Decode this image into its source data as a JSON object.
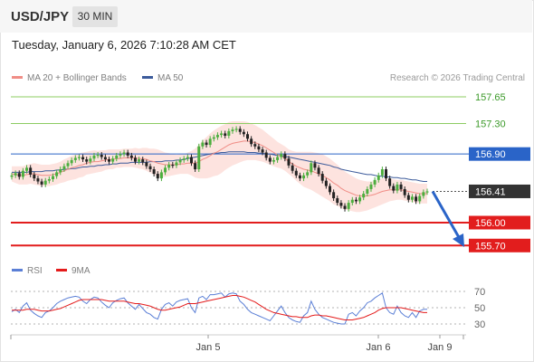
{
  "header": {
    "symbol": "USD/JPY",
    "interval_label": "30 MIN"
  },
  "timestamp": "Tuesday, January 6, 2026 7:10:28 AM CET",
  "legend": [
    {
      "label": "MA 20 + Bollinger Bands",
      "color": "#f08d86"
    },
    {
      "label": "MA 50",
      "color": "#3c5b9b"
    }
  ],
  "copyright": "Research © 2026 Trading Central",
  "rsi_legend": [
    {
      "label": "RSI",
      "color": "#5b7fd6"
    },
    {
      "label": "9MA",
      "color": "#e41b1b"
    }
  ],
  "colors": {
    "resistance": "#8ccc62",
    "pivot": "#2a64c8",
    "support": "#e21d1d",
    "current": "#333333",
    "bullish": "#4cae3e",
    "bearish": "#222222",
    "band_fill": "#fde3df"
  },
  "chart_data": {
    "type": "candlestick",
    "levels": [
      {
        "label": "157.65",
        "value": 157.65,
        "kind": "resistance"
      },
      {
        "label": "157.30",
        "value": 157.3,
        "kind": "resistance"
      },
      {
        "label": "156.90",
        "value": 156.9,
        "kind": "pivot"
      },
      {
        "label": "156.41",
        "value": 156.41,
        "kind": "current"
      },
      {
        "label": "156.00",
        "value": 156.0,
        "kind": "support"
      },
      {
        "label": "155.70",
        "value": 155.7,
        "kind": "support"
      }
    ],
    "rsi_ticks": [
      "70",
      "50",
      "30"
    ],
    "x_ticks": [
      "Jan 5",
      "Jan 6",
      "Jan 9"
    ],
    "closes": [
      156.62,
      156.65,
      156.6,
      156.68,
      156.72,
      156.63,
      156.58,
      156.54,
      156.5,
      156.55,
      156.57,
      156.61,
      156.66,
      156.7,
      156.74,
      156.78,
      156.82,
      156.85,
      156.86,
      156.83,
      156.8,
      156.84,
      156.88,
      156.89,
      156.86,
      156.83,
      156.8,
      156.84,
      156.88,
      156.9,
      156.92,
      156.88,
      156.85,
      156.8,
      156.83,
      156.79,
      156.74,
      156.7,
      156.64,
      156.58,
      156.66,
      156.72,
      156.76,
      156.75,
      156.79,
      156.82,
      156.84,
      156.86,
      156.78,
      156.7,
      157.0,
      157.05,
      157.02,
      157.1,
      157.12,
      157.15,
      157.17,
      157.14,
      157.2,
      157.22,
      157.23,
      157.19,
      157.16,
      157.1,
      157.03,
      157.0,
      156.96,
      156.92,
      156.85,
      156.8,
      156.82,
      156.86,
      156.9,
      156.84,
      156.75,
      156.68,
      156.62,
      156.58,
      156.62,
      156.66,
      156.78,
      156.72,
      156.64,
      156.55,
      156.48,
      156.4,
      156.32,
      156.26,
      156.22,
      156.18,
      156.26,
      156.3,
      156.28,
      156.33,
      156.38,
      156.44,
      156.5,
      156.56,
      156.62,
      156.7,
      156.58,
      156.48,
      156.42,
      156.5,
      156.44,
      156.36,
      156.3,
      156.34,
      156.28,
      156.35,
      156.4,
      156.41
    ],
    "ma20": [
      156.64,
      156.63,
      156.62,
      156.62,
      156.63,
      156.64,
      156.64,
      156.63,
      156.62,
      156.62,
      156.62,
      156.63,
      156.64,
      156.66,
      156.68,
      156.7,
      156.72,
      156.73,
      156.75,
      156.76,
      156.78,
      156.79,
      156.8,
      156.8,
      156.81,
      156.82,
      156.83,
      156.83,
      156.84,
      156.84,
      156.85,
      156.85,
      156.85,
      156.85,
      156.84,
      156.84,
      156.83,
      156.81,
      156.8,
      156.78,
      156.77,
      156.76,
      156.76,
      156.76,
      156.76,
      156.77,
      156.77,
      156.78,
      156.78,
      156.78,
      156.8,
      156.83,
      156.85,
      156.88,
      156.91,
      156.93,
      156.96,
      156.99,
      157.02,
      157.04,
      157.05,
      157.06,
      157.07,
      157.07,
      157.06,
      157.05,
      157.03,
      157.01,
      156.98,
      156.95,
      156.92,
      156.89,
      156.87,
      156.84,
      156.8,
      156.77,
      156.74,
      156.72,
      156.7,
      156.69,
      156.68,
      156.66,
      156.64,
      156.62,
      156.59,
      156.56,
      156.52,
      156.49,
      156.45,
      156.42,
      156.4,
      156.38,
      156.36,
      156.35,
      156.35,
      156.35,
      156.36,
      156.37,
      156.39,
      156.41,
      156.42,
      156.43,
      156.43,
      156.43,
      156.43,
      156.42,
      156.41,
      156.4,
      156.39,
      156.38,
      156.38,
      156.38
    ],
    "ma50": [
      156.66,
      156.66,
      156.66,
      156.66,
      156.66,
      156.67,
      156.67,
      156.67,
      156.67,
      156.68,
      156.68,
      156.68,
      156.69,
      156.69,
      156.7,
      156.7,
      156.71,
      156.71,
      156.72,
      156.73,
      156.73,
      156.74,
      156.74,
      156.75,
      156.75,
      156.76,
      156.76,
      156.77,
      156.77,
      156.78,
      156.78,
      156.78,
      156.79,
      156.79,
      156.79,
      156.79,
      156.79,
      156.8,
      156.8,
      156.8,
      156.8,
      156.81,
      156.81,
      156.81,
      156.82,
      156.82,
      156.83,
      156.84,
      156.85,
      156.86,
      156.87,
      156.88,
      156.89,
      156.9,
      156.91,
      156.91,
      156.92,
      156.92,
      156.93,
      156.93,
      156.93,
      156.93,
      156.93,
      156.92,
      156.92,
      156.92,
      156.91,
      156.91,
      156.9,
      156.9,
      156.89,
      156.88,
      156.88,
      156.87,
      156.86,
      156.85,
      156.84,
      156.83,
      156.82,
      156.81,
      156.8,
      156.79,
      156.78,
      156.77,
      156.76,
      156.75,
      156.73,
      156.72,
      156.7,
      156.69,
      156.68,
      156.67,
      156.66,
      156.65,
      156.64,
      156.63,
      156.63,
      156.62,
      156.61,
      156.61,
      156.6,
      156.6,
      156.59,
      156.59,
      156.58,
      156.58,
      156.57,
      156.56,
      156.56,
      156.55,
      156.54,
      156.54
    ],
    "bb_width": [
      0.1,
      0.11,
      0.12,
      0.12,
      0.13,
      0.13,
      0.14,
      0.14,
      0.14,
      0.14,
      0.14,
      0.14,
      0.14,
      0.14,
      0.15,
      0.15,
      0.16,
      0.16,
      0.16,
      0.16,
      0.15,
      0.15,
      0.15,
      0.14,
      0.14,
      0.13,
      0.13,
      0.13,
      0.12,
      0.12,
      0.12,
      0.12,
      0.12,
      0.13,
      0.13,
      0.14,
      0.15,
      0.16,
      0.17,
      0.18,
      0.17,
      0.16,
      0.15,
      0.14,
      0.13,
      0.13,
      0.13,
      0.14,
      0.16,
      0.19,
      0.22,
      0.25,
      0.27,
      0.29,
      0.3,
      0.31,
      0.31,
      0.3,
      0.3,
      0.29,
      0.28,
      0.27,
      0.26,
      0.25,
      0.24,
      0.23,
      0.22,
      0.21,
      0.2,
      0.19,
      0.18,
      0.17,
      0.16,
      0.16,
      0.16,
      0.17,
      0.19,
      0.21,
      0.23,
      0.24,
      0.25,
      0.26,
      0.27,
      0.28,
      0.28,
      0.28,
      0.28,
      0.27,
      0.26,
      0.25,
      0.24,
      0.23,
      0.22,
      0.21,
      0.2,
      0.19,
      0.18,
      0.17,
      0.17,
      0.17,
      0.16,
      0.15,
      0.14,
      0.13,
      0.13,
      0.13,
      0.13,
      0.13,
      0.13,
      0.13,
      0.13,
      0.13
    ],
    "rsi": [
      45,
      48,
      44,
      52,
      56,
      47,
      43,
      40,
      38,
      44,
      46,
      50,
      55,
      58,
      60,
      62,
      63,
      64,
      63,
      58,
      55,
      60,
      63,
      62,
      57,
      53,
      50,
      56,
      59,
      61,
      62,
      56,
      52,
      48,
      54,
      49,
      44,
      42,
      38,
      36,
      48,
      54,
      56,
      52,
      57,
      59,
      60,
      61,
      50,
      44,
      62,
      64,
      60,
      66,
      66,
      67,
      68,
      63,
      67,
      68,
      67,
      58,
      54,
      48,
      44,
      42,
      40,
      38,
      36,
      34,
      40,
      46,
      52,
      44,
      38,
      35,
      33,
      32,
      40,
      44,
      58,
      48,
      42,
      38,
      36,
      34,
      32,
      31,
      30,
      30,
      42,
      44,
      40,
      46,
      50,
      56,
      58,
      62,
      65,
      68,
      50,
      44,
      42,
      52,
      44,
      40,
      38,
      44,
      38,
      46,
      48,
      48
    ],
    "rsi_ma": [
      47,
      47,
      47,
      47,
      48,
      48,
      48,
      47,
      46,
      46,
      46,
      47,
      48,
      49,
      51,
      53,
      55,
      57,
      59,
      60,
      60,
      60,
      60,
      60,
      60,
      59,
      58,
      58,
      58,
      58,
      58,
      57,
      56,
      55,
      55,
      54,
      53,
      52,
      50,
      48,
      47,
      47,
      48,
      49,
      50,
      51,
      53,
      55,
      55,
      55,
      56,
      57,
      58,
      59,
      60,
      61,
      62,
      63,
      64,
      65,
      65,
      64,
      63,
      61,
      59,
      57,
      54,
      51,
      48,
      46,
      44,
      43,
      42,
      41,
      40,
      39,
      39,
      38,
      38,
      38,
      40,
      41,
      41,
      40,
      40,
      39,
      38,
      37,
      36,
      35,
      35,
      35,
      36,
      37,
      38,
      40,
      42,
      44,
      47,
      49,
      50,
      50,
      50,
      50,
      50,
      49,
      48,
      47,
      46,
      45,
      44,
      44
    ]
  }
}
